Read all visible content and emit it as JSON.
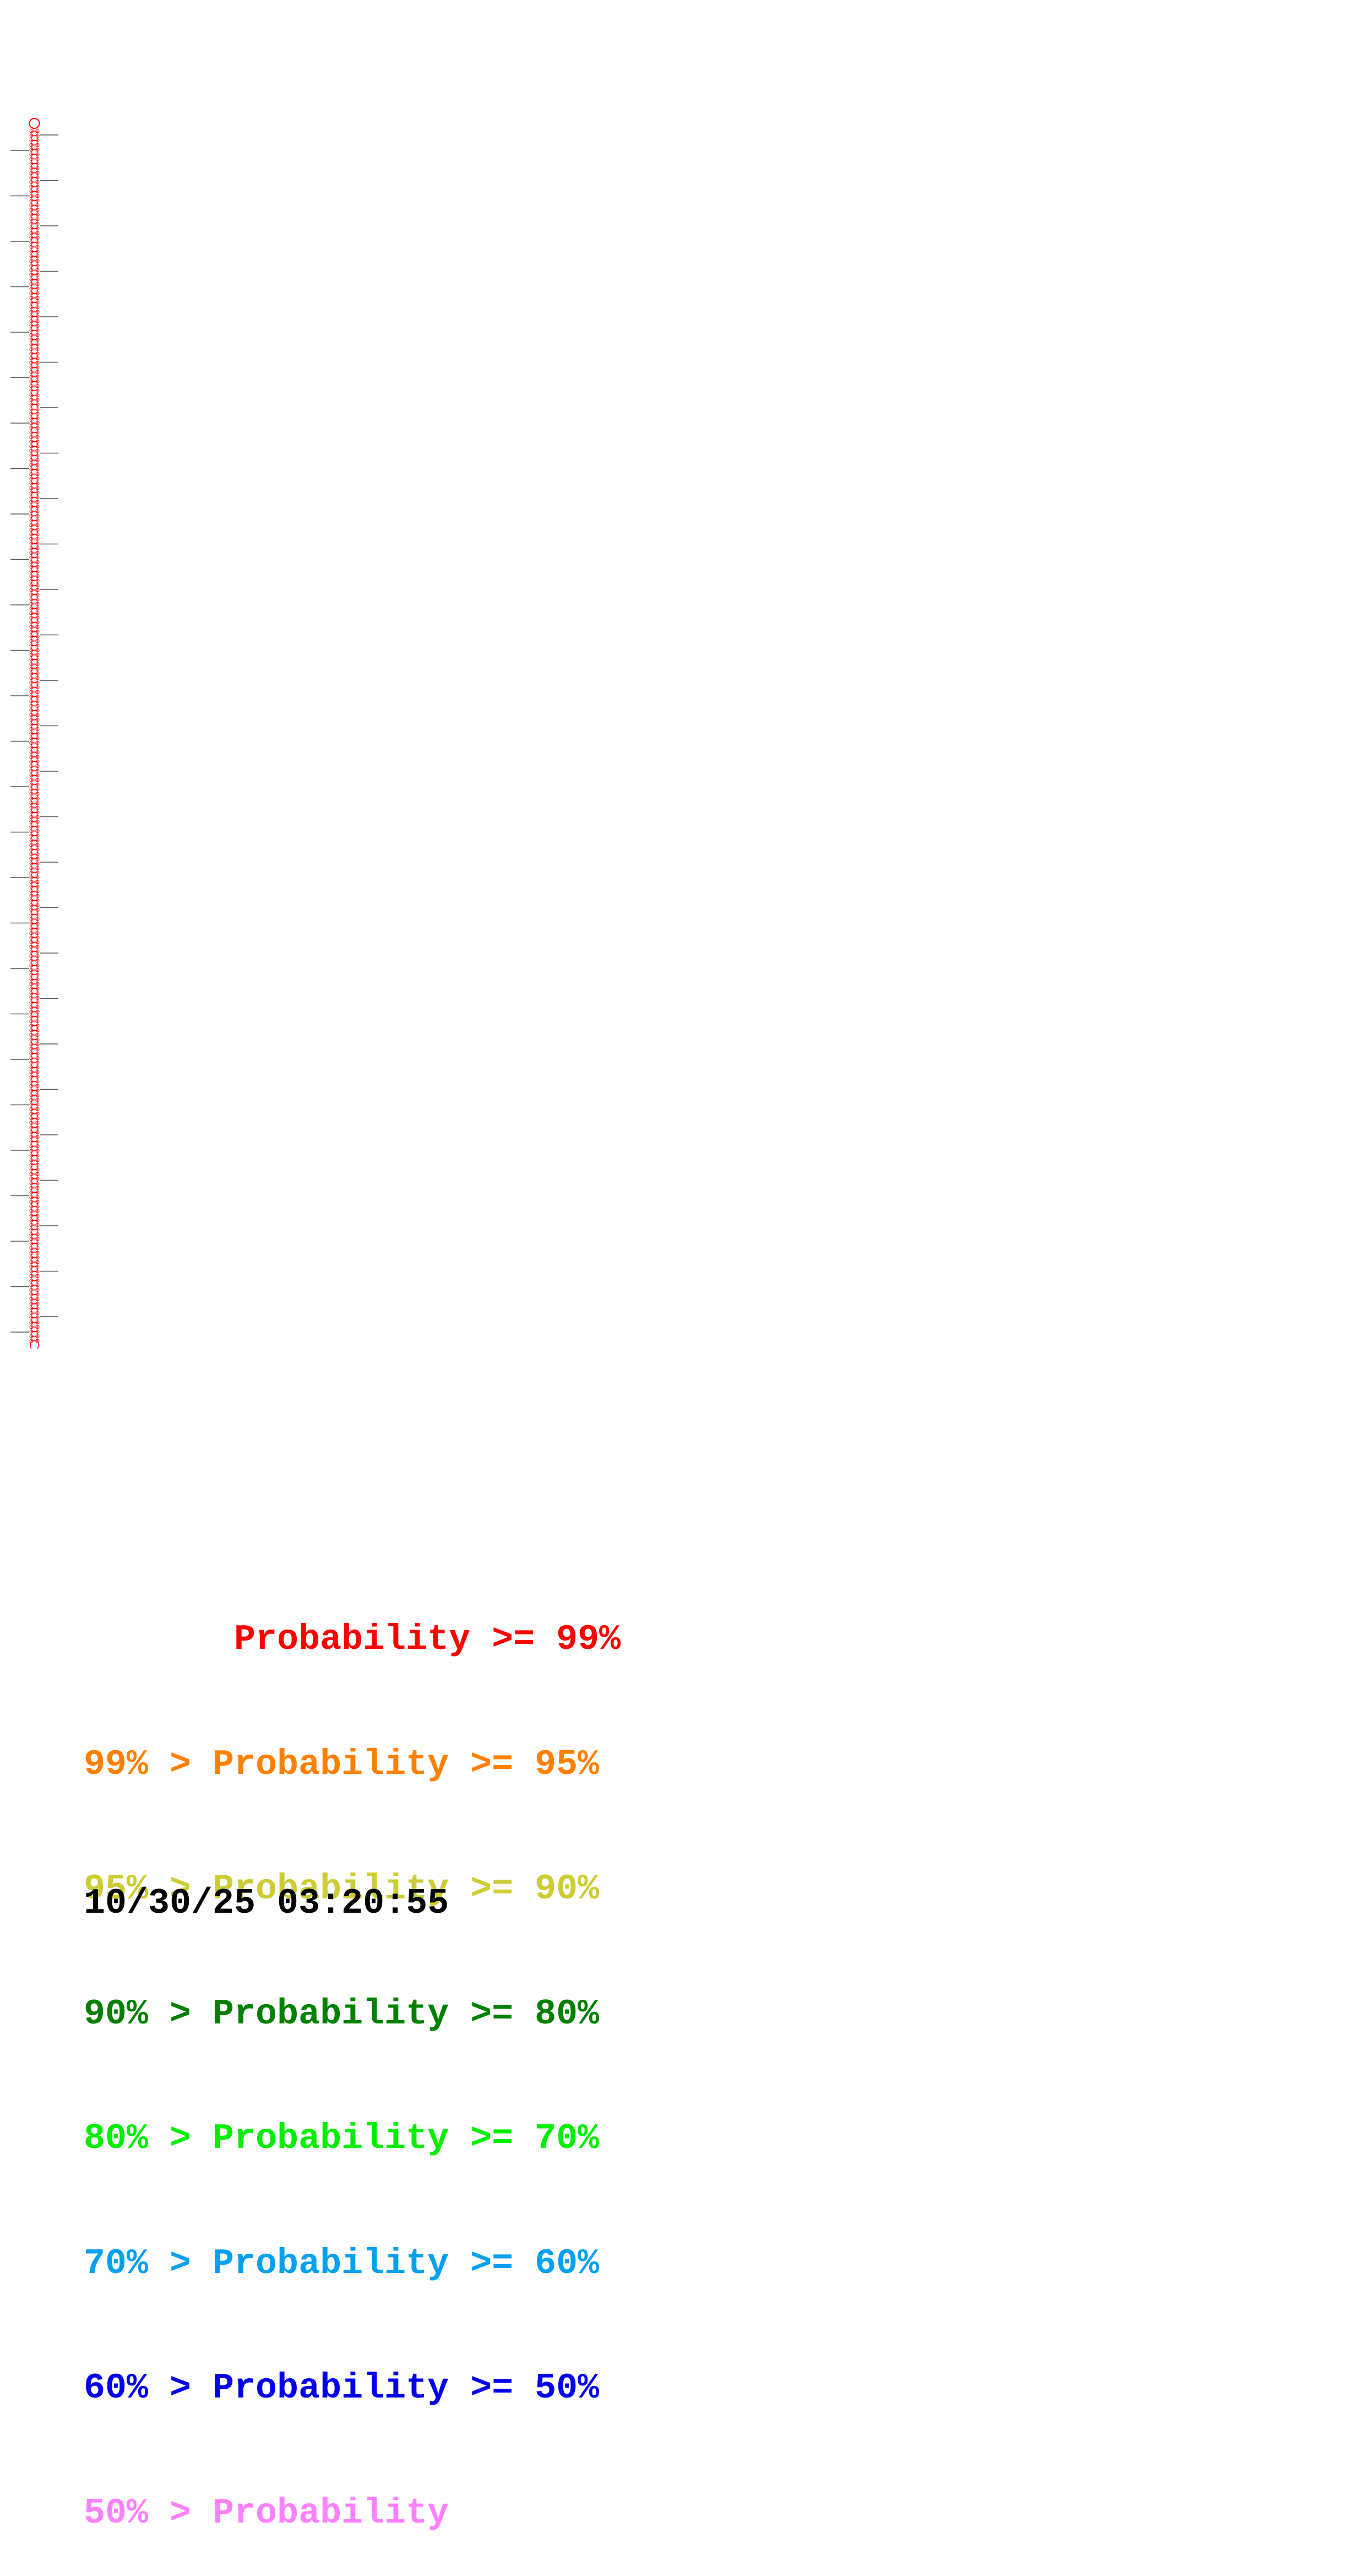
{
  "legend": [
    {
      "text": "       Probability >= 99%",
      "color": "#ff0000"
    },
    {
      "text": "99% > Probability >= 95%",
      "color": "#ff8000"
    },
    {
      "text": "95% > Probability >= 90%",
      "color": "#cccc33"
    },
    {
      "text": "90% > Probability >= 80%",
      "color": "#008000"
    },
    {
      "text": "80% > Probability >= 70%",
      "color": "#00ee00"
    },
    {
      "text": "70% > Probability >= 60%",
      "color": "#00a0f0"
    },
    {
      "text": "60% > Probability >= 50%",
      "color": "#0000ee"
    },
    {
      "text": "50% > Probability",
      "color": "#ff80ff"
    }
  ],
  "timestamp": "10/30/25 03:20:55",
  "structure": {
    "description_type": "stem-loop",
    "base_color": "#ff0000",
    "tick_color": "#555555",
    "base_pairs_approx": 262
  }
}
